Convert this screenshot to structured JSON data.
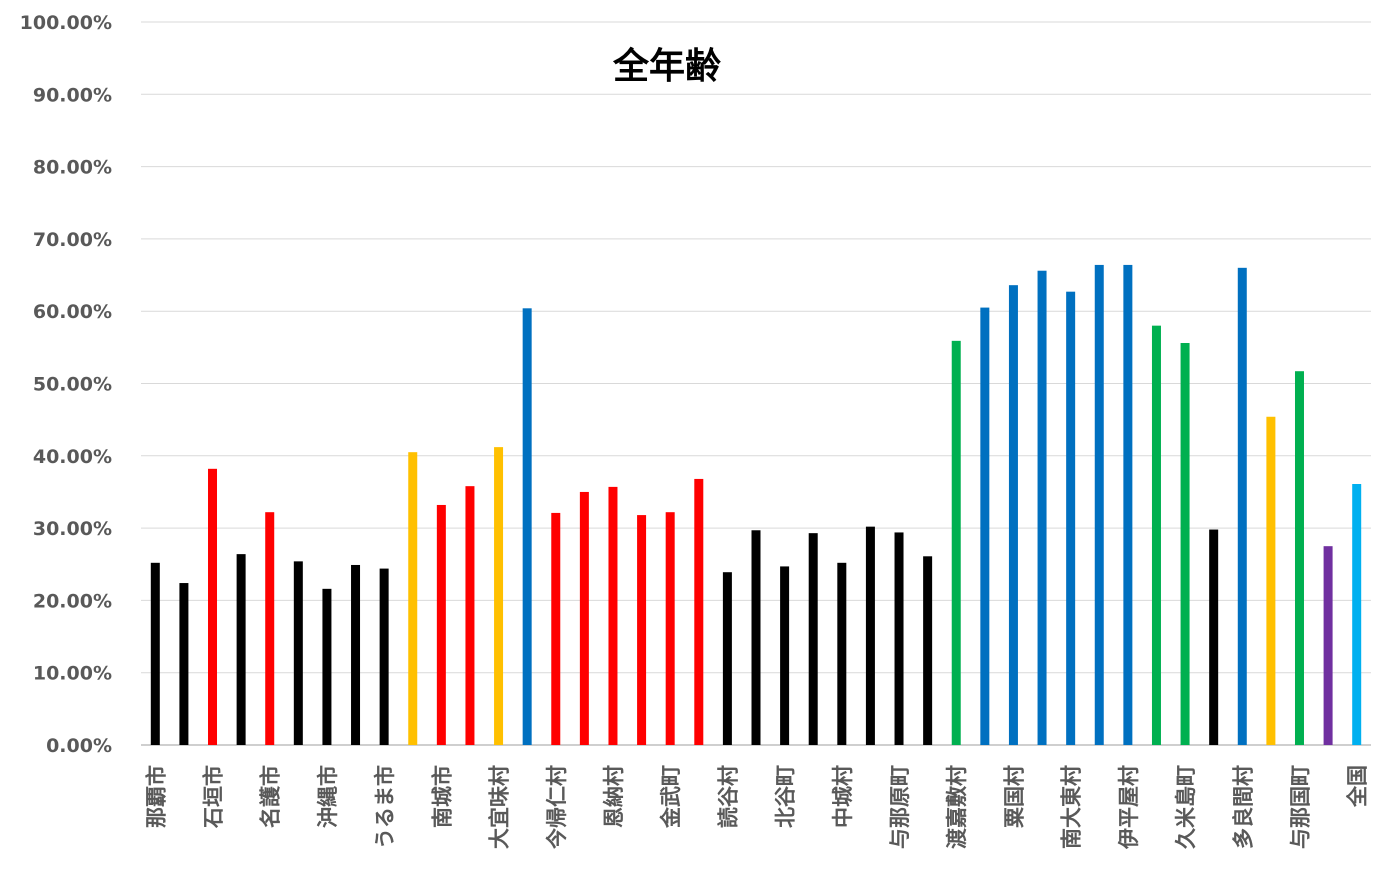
{
  "chart_data": {
    "type": "bar",
    "title": "全年齢",
    "xlabel": "",
    "ylabel": "",
    "ylim": [
      0,
      100
    ],
    "y_ticks": [
      "0.00%",
      "10.00%",
      "20.00%",
      "30.00%",
      "40.00%",
      "50.00%",
      "60.00%",
      "70.00%",
      "80.00%",
      "90.00%",
      "100.00%"
    ],
    "grid": true,
    "legend": "none",
    "categories": [
      "那覇市",
      "",
      "石垣市",
      "",
      "名護市",
      "",
      "沖縄市",
      "",
      "うるま市",
      "",
      "南城市",
      "",
      "大宜味村",
      "",
      "今帰仁村",
      "",
      "恩納村",
      "",
      "金武町",
      "",
      "読谷村",
      "",
      "北谷町",
      "",
      "中城村",
      "",
      "与那原町",
      "",
      "渡嘉敷村",
      "",
      "粟国村",
      "",
      "南大東村",
      "",
      "伊平屋村",
      "",
      "久米島町",
      "",
      "多良間村",
      "",
      "与那国町",
      "",
      "全国"
    ],
    "values": [
      25.2,
      22.4,
      38.2,
      26.4,
      32.2,
      25.4,
      21.6,
      24.9,
      24.4,
      40.5,
      33.2,
      35.8,
      41.2,
      60.4,
      32.1,
      35.0,
      35.7,
      31.8,
      32.2,
      36.8,
      23.9,
      29.7,
      24.7,
      29.3,
      25.2,
      30.2,
      29.4,
      26.1,
      55.9,
      60.5,
      63.6,
      65.6,
      62.7,
      66.4,
      66.4,
      58.0,
      55.6,
      29.8,
      66.0,
      45.4,
      51.7,
      27.5,
      36.1
    ],
    "colors": [
      "#000000",
      "#000000",
      "#FF0000",
      "#000000",
      "#FF0000",
      "#000000",
      "#000000",
      "#000000",
      "#000000",
      "#FFC000",
      "#FF0000",
      "#FF0000",
      "#FFC000",
      "#0070C0",
      "#FF0000",
      "#FF0000",
      "#FF0000",
      "#FF0000",
      "#FF0000",
      "#FF0000",
      "#000000",
      "#000000",
      "#000000",
      "#000000",
      "#000000",
      "#000000",
      "#000000",
      "#000000",
      "#00B050",
      "#0070C0",
      "#0070C0",
      "#0070C0",
      "#0070C0",
      "#0070C0",
      "#0070C0",
      "#00B050",
      "#00B050",
      "#000000",
      "#0070C0",
      "#FFC000",
      "#00B050",
      "#7030A0",
      "#00B0F0"
    ]
  }
}
